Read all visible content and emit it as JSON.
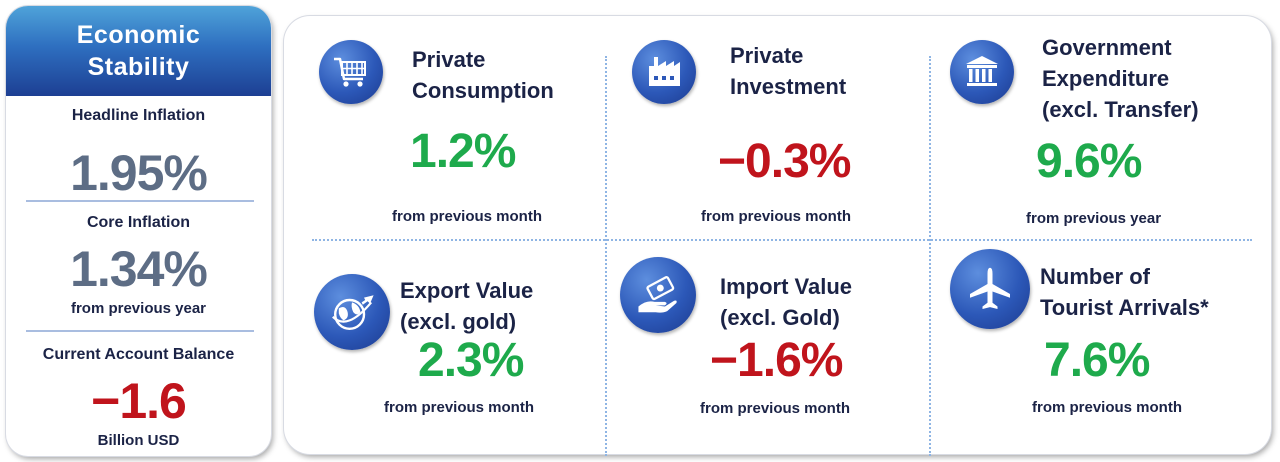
{
  "stability": {
    "title": "Economic Stability",
    "headline_label": "Headline Inflation",
    "headline_value": "1.95%",
    "core_label": "Core Inflation",
    "core_value": "1.34%",
    "inflation_note": "from previous year",
    "ca_label": "Current Account Balance",
    "ca_value": "−1.6",
    "ca_unit": "Billion USD"
  },
  "indicators": [
    {
      "title_line1": "Private",
      "title_line2": "Consumption",
      "title_line3": "",
      "value": "1.2%",
      "note": "from previous month",
      "icon": "shopping-cart-icon",
      "value_color": "#1eaa4c"
    },
    {
      "title_line1": "Private",
      "title_line2": "Investment",
      "title_line3": "",
      "value": "−0.3%",
      "note": "from previous month",
      "icon": "factory-icon",
      "value_color": "#c0141c"
    },
    {
      "title_line1": "Government",
      "title_line2": "Expenditure",
      "title_line3": "(excl. Transfer)",
      "value": "9.6%",
      "note": "from previous year",
      "icon": "government-building-icon",
      "value_color": "#1eaa4c"
    },
    {
      "title_line1": "Export Value",
      "title_line2": "(excl. gold)",
      "title_line3": "",
      "value": "2.3%",
      "note": "from previous month",
      "icon": "globe-plane-icon",
      "value_color": "#1eaa4c"
    },
    {
      "title_line1": "Import Value",
      "title_line2": "(excl. Gold)",
      "title_line3": "",
      "value": "−1.6%",
      "note": "from previous month",
      "icon": "hand-money-icon",
      "value_color": "#c0141c"
    },
    {
      "title_line1": "Number of",
      "title_line2": "Tourist Arrivals*",
      "title_line3": "",
      "value": "7.6%",
      "note": "from previous month",
      "icon": "airplane-icon",
      "value_color": "#1eaa4c"
    }
  ],
  "colors": {
    "positive": "#1eaa4c",
    "negative": "#c0141c",
    "neutral": "#5d6d85",
    "title": "#1b2346",
    "header_blue": "#2e6fc0"
  }
}
